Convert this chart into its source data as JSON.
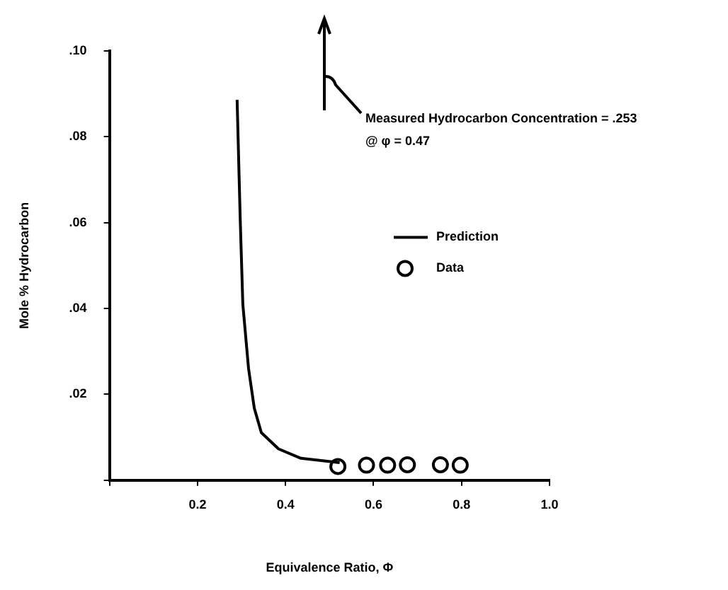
{
  "chart_data": {
    "type": "line",
    "xlabel": "Equivalence Ratio, Φ",
    "ylabel": "Mole % Hydrocarbon",
    "xlim": [
      0,
      1.0
    ],
    "ylim": [
      0,
      0.1
    ],
    "xticks": [
      {
        "value": 0,
        "label": null
      },
      {
        "value": 0.2,
        "label": "0.2"
      },
      {
        "value": 0.4,
        "label": "0.4"
      },
      {
        "value": 0.6,
        "label": "0.6"
      },
      {
        "value": 0.8,
        "label": "0.8"
      },
      {
        "value": 1.0,
        "label": "1.0"
      }
    ],
    "yticks": [
      {
        "value": 0,
        "label": null
      },
      {
        "value": 0.02,
        "label": ".02"
      },
      {
        "value": 0.04,
        "label": ".04"
      },
      {
        "value": 0.06,
        "label": ".06"
      },
      {
        "value": 0.08,
        "label": ".08"
      },
      {
        "value": 0.1,
        "label": ".10"
      }
    ],
    "grid": false,
    "legend": "right",
    "series": [
      {
        "name": "Prediction",
        "type": "line",
        "color": "#000000",
        "marker": "none",
        "x": [
          0.29,
          0.297,
          0.303,
          0.316,
          0.329,
          0.345,
          0.384,
          0.435,
          0.523
        ],
        "values": [
          0.0886,
          0.061,
          0.041,
          0.026,
          0.0168,
          0.0111,
          0.0073,
          0.0051,
          0.0041
        ]
      },
      {
        "name": "Data",
        "type": "scatter",
        "color": "#000000",
        "marker": "circle",
        "x": [
          0.519,
          0.584,
          0.632,
          0.677,
          0.752,
          0.797
        ],
        "values": [
          0.0032,
          0.0035,
          0.0035,
          0.0036,
          0.0036,
          0.0035
        ]
      }
    ],
    "annotations": [
      "Measured Hydrocarbon Concentration = .253",
      "@ φ = 0.47"
    ]
  }
}
